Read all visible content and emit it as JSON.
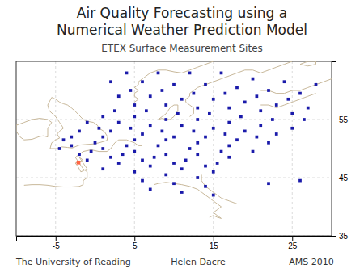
{
  "chart_data": {
    "type": "scatter",
    "title": [
      "Air Quality Forecasting using a",
      "Numerical Weather Prediction Model"
    ],
    "subtitle": "ETEX Surface Measurement Sites",
    "annotations": [
      "The University of Reading",
      "Helen Dacre",
      "AMS 2010"
    ],
    "xlim": [
      -10,
      30
    ],
    "ylim": [
      35,
      65
    ],
    "xticks": [
      -5,
      5,
      15,
      25
    ],
    "yticks": [
      35,
      45,
      55
    ],
    "grid": true,
    "series": [
      {
        "type": "line",
        "color": "#C8B89A",
        "x": [
          -5.7,
          -4.9,
          -4.2,
          -3.5,
          -2.9,
          -2.0,
          -1.2,
          -0.2,
          0.5,
          1.5,
          1.6,
          1.2,
          0.5,
          0.3,
          -0.2,
          -1.0,
          -1.5,
          -2.0,
          -2.5,
          -3.0,
          -3.5,
          -4.0,
          -4.5,
          -5.0,
          -5.5,
          -6.0,
          -5.8,
          -5.0,
          -4.5,
          -4.0,
          -4.5,
          -4.8,
          -4.5,
          -5.0,
          -5.5,
          -5.7
        ],
        "values": [
          50.0,
          50.0,
          50.3,
          50.2,
          50.1,
          50.6,
          50.7,
          50.8,
          51.0,
          51.4,
          52.0,
          52.9,
          53.5,
          54.0,
          54.5,
          54.7,
          55.0,
          55.7,
          56.4,
          57.0,
          57.5,
          57.7,
          58.0,
          58.5,
          58.8,
          57.5,
          56.5,
          55.5,
          54.5,
          53.5,
          53.0,
          52.5,
          51.8,
          51.5,
          51.0,
          50.0
        ]
      },
      {
        "type": "line",
        "color": "#C8B89A",
        "x": [
          -6.0,
          -6.5,
          -7.0,
          -8.0,
          -9.0,
          -9.5,
          -10.0,
          -10.0,
          -9.0,
          -8.0,
          -7.0,
          -6.0,
          -5.5,
          -6.0,
          -6.0
        ],
        "values": [
          52.0,
          52.2,
          52.1,
          51.6,
          51.5,
          52.0,
          53.0,
          54.0,
          54.5,
          55.0,
          55.2,
          55.0,
          54.5,
          53.5,
          52.0
        ]
      },
      {
        "type": "line",
        "color": "#C8B89A",
        "x": [
          -2.0,
          -1.5,
          -1.0,
          -1.8,
          -2.2,
          -2.5,
          -1.5,
          -2.0
        ],
        "values": [
          48.5,
          47.5,
          46.5,
          46.0,
          47.0,
          47.5,
          48.0,
          48.5
        ]
      },
      {
        "type": "line",
        "color": "#C8B89A",
        "x": [
          -5.0,
          -4.0,
          -3.0,
          -2.0,
          -1.5,
          -1.5,
          -1.0,
          -1.0,
          -1.5,
          -2.0,
          -2.5,
          -2.0,
          -1.5,
          -0.5,
          0.5,
          1.5,
          2.0,
          2.5,
          3.0,
          4.0,
          5.0,
          5.5,
          6.0
        ],
        "values": [
          43.5,
          43.4,
          43.4,
          43.5,
          43.8,
          44.5,
          45.0,
          46.0,
          46.5,
          47.5,
          48.5,
          49.0,
          49.5,
          49.8,
          49.5,
          49.5,
          50.0,
          51.0,
          51.5,
          51.5,
          51.0,
          50.5,
          50.5
        ]
      },
      {
        "type": "line",
        "color": "#C8B89A",
        "x": [
          -9.0,
          -8.0,
          -7.0,
          -6.0,
          -5.0
        ],
        "values": [
          43.7,
          43.8,
          43.8,
          43.7,
          43.5
        ]
      },
      {
        "type": "line",
        "color": "#C8B89A",
        "x": [
          7.5,
          8.0,
          9.0,
          10.0,
          11.0,
          12.0,
          13.0,
          13.5,
          14.0,
          15.0,
          15.5,
          16.0,
          15.5,
          15.0,
          15.5,
          16.0,
          15.5,
          15.0,
          14.5
        ],
        "values": [
          43.8,
          44.0,
          44.2,
          44.0,
          43.8,
          43.5,
          43.0,
          42.5,
          42.0,
          41.0,
          40.5,
          40.0,
          39.5,
          39.0,
          38.5,
          38.0,
          38.2,
          38.5,
          38.2
        ]
      },
      {
        "type": "line",
        "color": "#C8B89A",
        "x": [
          13.5,
          13.5,
          14.0,
          15.0,
          16.0,
          17.0,
          18.0
        ],
        "values": [
          45.5,
          44.5,
          43.5,
          42.5,
          41.5,
          41.0,
          40.5
        ]
      },
      {
        "type": "line",
        "color": "#C8B89A",
        "x": [
          8.0,
          8.5,
          9.0,
          9.5,
          10.0,
          10.5,
          10.5,
          10.0,
          9.5,
          9.0,
          8.5,
          8.0
        ],
        "values": [
          55.0,
          55.5,
          56.0,
          57.0,
          57.5,
          57.5,
          56.5,
          55.5,
          55.0,
          55.0,
          55.2,
          55.0
        ]
      },
      {
        "type": "line",
        "color": "#C8B89A",
        "x": [
          5.0,
          5.5,
          5.0,
          5.0,
          5.5,
          5.0,
          5.5,
          5.5,
          6.0,
          6.5,
          7.0,
          8.0,
          9.0,
          10.0,
          11.0,
          12.0,
          13.0,
          14.0,
          15.0
        ],
        "values": [
          58.0,
          58.5,
          59.0,
          59.5,
          60.0,
          60.5,
          61.0,
          61.5,
          62.0,
          62.5,
          63.0,
          63.5,
          63.5,
          63.2,
          63.0,
          63.5,
          64.0,
          64.5,
          65.0
        ]
      },
      {
        "type": "line",
        "color": "#C8B89A",
        "x": [
          12.0,
          12.5,
          12.5,
          12.0,
          11.5,
          11.5,
          12.0,
          12.0,
          12.5,
          13.0,
          14.0,
          15.0,
          16.0,
          17.0,
          18.0,
          19.0,
          20.0,
          21.0,
          22.0,
          23.0,
          24.0,
          25.0
        ],
        "values": [
          55.5,
          56.0,
          57.0,
          57.5,
          58.0,
          58.5,
          59.0,
          59.5,
          60.0,
          60.5,
          61.0,
          61.5,
          62.0,
          62.5,
          63.0,
          63.5,
          63.5,
          63.0,
          63.5,
          64.0,
          64.5,
          65.0
        ]
      },
      {
        "type": "line",
        "color": "#C8B89A",
        "x": [
          21.0,
          22.0,
          23.0,
          24.0,
          25.0,
          26.0,
          27.0,
          28.0
        ],
        "values": [
          57.5,
          57.5,
          57.0,
          57.5,
          58.0,
          58.5,
          59.0,
          59.5
        ]
      },
      {
        "type": "line",
        "color": "#C8B89A",
        "x": [
          21.0,
          22.0,
          23.0,
          24.0,
          25.0,
          26.0,
          27.0,
          28.0,
          29.0,
          30.0
        ],
        "values": [
          60.0,
          60.0,
          59.5,
          59.5,
          60.0,
          60.0,
          60.5,
          61.0,
          61.5,
          62.0
        ]
      },
      {
        "type": "line",
        "color": "#C8B89A",
        "x": [
          26.0,
          27.0,
          28.0,
          28.0,
          27.0,
          26.0
        ],
        "values": [
          64.5,
          65.0,
          65.0,
          64.5,
          64.2,
          64.5
        ]
      },
      {
        "type": "scatter",
        "color": "#1a1aaa",
        "marker": "square",
        "x": [
          4.0,
          8.0,
          12.0,
          16.0,
          20.0,
          24.0,
          28.0,
          2.0,
          6.0,
          10.0,
          14.0,
          18.0,
          22.0,
          26.0,
          4.5,
          8.5,
          12.5,
          16.5,
          20.5,
          24.5,
          3.0,
          7.0,
          11.0,
          15.0,
          19.0,
          23.0,
          27.0,
          5.0,
          9.0,
          13.0,
          17.0,
          21.0,
          25.0,
          2.5,
          6.5,
          10.5,
          14.5,
          18.5,
          22.5,
          26.5,
          1.0,
          5.0,
          9.0,
          13.0,
          17.0,
          21.0,
          25.0,
          -1.0,
          3.0,
          7.0,
          11.0,
          15.0,
          19.0,
          23.0,
          0.5,
          4.5,
          8.5,
          12.5,
          16.5,
          20.5,
          -2.0,
          2.0,
          6.0,
          10.0,
          14.0,
          18.0,
          22.0,
          -3.0,
          1.0,
          5.0,
          9.0,
          13.0,
          17.0,
          -4.0,
          0.0,
          4.0,
          8.0,
          12.0,
          16.0,
          20.0,
          -3.0,
          1.0,
          5.0,
          9.0,
          13.0,
          17.0,
          -4.5,
          -0.5,
          3.5,
          7.5,
          11.5,
          15.5,
          -2.0,
          2.0,
          6.0,
          10.0,
          14.0,
          -1.0,
          3.0,
          7.0,
          11.0,
          15.0,
          1.0,
          5.0,
          9.0,
          13.0,
          6.0,
          10.0,
          14.0,
          7.0,
          11.0,
          15.0,
          22.0,
          26.0
        ],
        "values": [
          63.0,
          63.0,
          63.0,
          63.0,
          62.0,
          61.5,
          61.0,
          61.5,
          61.5,
          61.0,
          61.0,
          60.5,
          60.0,
          59.5,
          60.0,
          60.0,
          59.5,
          59.5,
          59.0,
          58.5,
          59.0,
          59.0,
          58.5,
          58.5,
          58.0,
          57.5,
          57.0,
          57.5,
          57.5,
          57.0,
          57.0,
          56.5,
          56.0,
          56.5,
          56.5,
          56.0,
          56.0,
          55.5,
          55.0,
          55.0,
          55.5,
          55.5,
          55.0,
          55.0,
          54.5,
          54.0,
          53.5,
          54.5,
          54.5,
          54.0,
          54.0,
          53.5,
          53.0,
          52.5,
          53.5,
          53.5,
          53.0,
          53.0,
          52.5,
          52.0,
          53.0,
          53.0,
          52.5,
          52.0,
          52.0,
          51.5,
          51.0,
          52.0,
          52.0,
          51.5,
          51.5,
          51.0,
          50.5,
          51.5,
          51.0,
          50.5,
          50.5,
          50.0,
          49.5,
          49.5,
          50.5,
          50.0,
          49.5,
          49.0,
          49.0,
          48.5,
          50.0,
          49.5,
          49.0,
          48.5,
          48.0,
          47.5,
          49.0,
          48.5,
          48.0,
          47.5,
          47.0,
          48.0,
          47.5,
          47.0,
          46.5,
          46.0,
          46.5,
          46.0,
          45.5,
          45.0,
          44.5,
          44.0,
          43.5,
          43.0,
          42.5,
          42.0,
          44.0,
          44.5
        ]
      },
      {
        "type": "scatter",
        "color": "#FF6644",
        "marker": "square",
        "x": [
          -2.1
        ],
        "values": [
          47.6
        ]
      }
    ]
  }
}
